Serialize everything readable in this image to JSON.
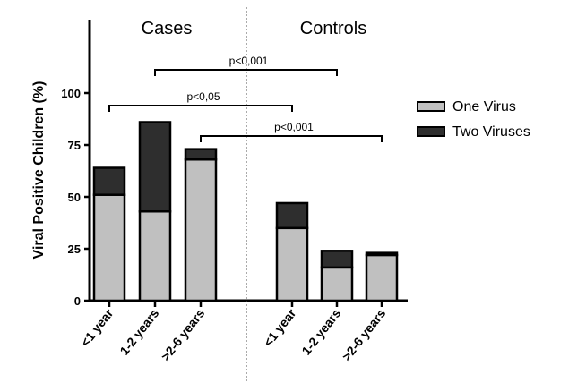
{
  "chart_data": {
    "type": "bar",
    "stacked": true,
    "ylabel": "Viral Positive Children (%)",
    "ylim": [
      0,
      100
    ],
    "yticks": [
      0,
      25,
      50,
      75,
      100
    ],
    "groups": [
      {
        "label": "Cases",
        "categories": [
          "<1 year",
          "1-2 years",
          ">2-6 years"
        ]
      },
      {
        "label": "Controls",
        "categories": [
          "<1 year",
          "1-2 years",
          ">2-6 years"
        ]
      }
    ],
    "categories": [
      "<1 year",
      "1-2 years",
      ">2-6 years",
      "<1 year",
      "1-2 years",
      ">2-6 years"
    ],
    "series": [
      {
        "name": "One Virus",
        "color": "#c0c0c0",
        "values": [
          51,
          43,
          68,
          35,
          16,
          22
        ]
      },
      {
        "name": "Two Viruses",
        "color": "#2e2e2e",
        "values": [
          13,
          43,
          5,
          12,
          8,
          1
        ]
      }
    ],
    "annotations": [
      {
        "text": "p<0,001",
        "from_category": 1,
        "to_category": 4
      },
      {
        "text": "p<0,05",
        "from_category": 0,
        "to_category": 3
      },
      {
        "text": "p<0,001",
        "from_category": 2,
        "to_category": 5
      }
    ],
    "legend_position": "right",
    "grid": false
  }
}
